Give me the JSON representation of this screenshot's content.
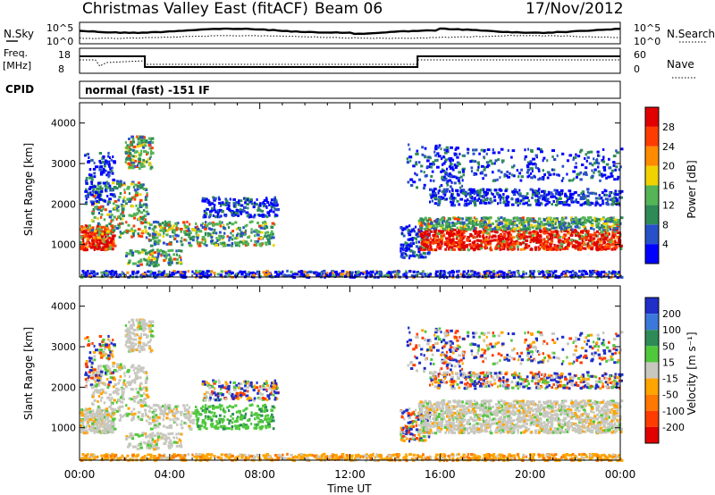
{
  "header": {
    "title": "Christmas Valley East (fitACF)",
    "beam": "Beam 06",
    "date": "17/Nov/2012"
  },
  "strip_labels": {
    "nsky": "N.Sky",
    "nsearch": "N.Search",
    "freq": "Freq.",
    "freq_unit": "[MHz]",
    "nave": "Nave",
    "cpid": "CPID",
    "cpid_value": "normal (fast) -151 IF",
    "noise_ticks_left": [
      "10^5",
      "10^0"
    ],
    "noise_ticks_right": [
      "10^5",
      "10^0"
    ],
    "freq_ticks_left": [
      "18",
      "8"
    ],
    "nave_ticks_right": [
      "60",
      "0"
    ]
  },
  "chart_data": [
    {
      "type": "heatmap",
      "panel": "power",
      "ylabel": "Slant Range [km]",
      "xlabel": "",
      "yticks": [
        "1000",
        "2000",
        "3000",
        "4000"
      ],
      "ylim": [
        200,
        4500
      ],
      "colorbar_label": "Power [dB]",
      "colorbar_ticks": [
        "4",
        "8",
        "12",
        "16",
        "20",
        "24",
        "28"
      ],
      "colorbar_colors": [
        "#0000ff",
        "#2850c8",
        "#2e8b57",
        "#55b455",
        "#f0d200",
        "#ff8c00",
        "#ff3c00",
        "#e00000"
      ]
    },
    {
      "type": "heatmap",
      "panel": "velocity",
      "ylabel": "Slant Range [km]",
      "xlabel": "Time UT",
      "xticks": [
        "00:00",
        "04:00",
        "08:00",
        "12:00",
        "16:00",
        "20:00",
        "00:00"
      ],
      "yticks": [
        "1000",
        "2000",
        "3000",
        "4000"
      ],
      "ylim": [
        200,
        4500
      ],
      "colorbar_label": "Velocity [m s⁻¹]",
      "colorbar_ticks": [
        "200",
        "100",
        "50",
        "15",
        "-15",
        "-50",
        "-100",
        "-200"
      ],
      "colorbar_colors": [
        "#1f2fc8",
        "#3c78dc",
        "#2e8b57",
        "#50c83c",
        "#c8c8c0",
        "#ffa500",
        "#ff7800",
        "#ff3c00",
        "#e00000"
      ]
    }
  ]
}
